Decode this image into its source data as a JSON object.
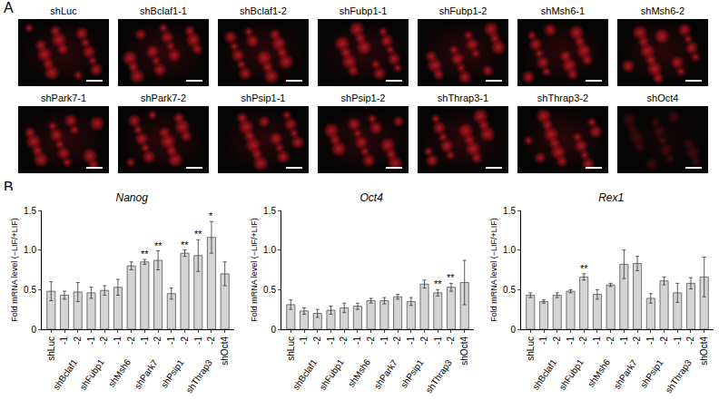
{
  "panel_labels": [
    "A",
    "B"
  ],
  "images": {
    "labels": [
      "shLuc",
      "shBclaf1-1",
      "shBclaf1-2",
      "shFubp1-1",
      "shFubp1-2",
      "shMsh6-1",
      "shMsh6-2",
      "shPark7-1",
      "shPark7-2",
      "shPsip1-1",
      "shPsip1-2",
      "shThrap3-1",
      "shThrap3-2",
      "shOct4"
    ]
  },
  "chart_data": [
    {
      "type": "bar",
      "title": "Nanog",
      "y_label": "Fold mRNA level (−LIF/+LIF)",
      "categories": [
        "shLuc",
        "-1",
        "-2",
        "-1",
        "-2",
        "-1",
        "-2",
        "-1",
        "-2",
        "-1",
        "-2",
        "-1",
        "-2",
        "shOct4"
      ],
      "groups": [
        null,
        "shBclaf1",
        "shBclaf1",
        "shFubp1",
        "shFubp1",
        "shMsh6",
        "shMsh6",
        "shPark7",
        "shPark7",
        "shPsip1",
        "shPsip1",
        "shThrap3",
        "shThrap3",
        null
      ],
      "values": [
        0.48,
        0.43,
        0.47,
        0.46,
        0.49,
        0.53,
        0.8,
        0.85,
        0.87,
        0.45,
        0.96,
        0.93,
        1.16,
        0.7
      ],
      "error": [
        0.12,
        0.05,
        0.12,
        0.07,
        0.06,
        0.1,
        0.05,
        0.03,
        0.12,
        0.07,
        0.04,
        0.2,
        0.2,
        0.15
      ],
      "significance": [
        null,
        null,
        null,
        null,
        null,
        null,
        null,
        "**",
        "**",
        null,
        "**",
        "**",
        "*",
        null
      ],
      "color": "#d4d4d4",
      "grid": false,
      "ylim": [
        0,
        1.5
      ],
      "yticks": [
        0,
        0.5,
        {
          "value": 1,
          "label": "1.0"
        },
        1.5
      ]
    },
    {
      "type": "bar",
      "title": "Oct4",
      "y_label": "Fold mRNA level (−LIF/+LIF)",
      "categories": [
        "shLuc",
        "-1",
        "-2",
        "-1",
        "-2",
        "-1",
        "-2",
        "-1",
        "-2",
        "-1",
        "-2",
        "-1",
        "-2",
        "shOct4"
      ],
      "groups": [
        null,
        "shBclaf1",
        "shBclaf1",
        "shFubp1",
        "shFubp1",
        "shMsh6",
        "shMsh6",
        "shPark7",
        "shPark7",
        "shPsip1",
        "shPsip1",
        "shThrap3",
        "shThrap3",
        null
      ],
      "values": [
        0.31,
        0.23,
        0.2,
        0.24,
        0.27,
        0.29,
        0.36,
        0.36,
        0.41,
        0.35,
        0.57,
        0.46,
        0.53,
        0.59
      ],
      "error": [
        0.06,
        0.04,
        0.05,
        0.05,
        0.06,
        0.04,
        0.03,
        0.04,
        0.03,
        0.05,
        0.05,
        0.04,
        0.05,
        0.28
      ],
      "significance": [
        null,
        null,
        null,
        null,
        null,
        null,
        null,
        null,
        null,
        null,
        null,
        "**",
        "**",
        null
      ],
      "color": "#d4d4d4",
      "grid": false,
      "ylim": [
        0,
        1.5
      ],
      "yticks": [
        0,
        0.5,
        {
          "value": 1,
          "label": "1.0"
        },
        1.5
      ]
    },
    {
      "type": "bar",
      "title": "Rex1",
      "y_label": "Fold mRNA level (−LIF/+LIF)",
      "categories": [
        "shLuc",
        "-1",
        "-2",
        "-1",
        "-2",
        "-1",
        "-2",
        "-1",
        "-2",
        "-1",
        "-2",
        "-1",
        "-2",
        "shOct4"
      ],
      "groups": [
        null,
        "shBclaf1",
        "shBclaf1",
        "shFubp1",
        "shFubp1",
        "shMsh6",
        "shMsh6",
        "shPark7",
        "shPark7",
        "shPsip1",
        "shPsip1",
        "shThrap3",
        "shThrap3",
        null
      ],
      "values": [
        0.43,
        0.35,
        0.43,
        0.48,
        0.66,
        0.44,
        0.56,
        0.82,
        0.83,
        0.39,
        0.61,
        0.46,
        0.58,
        0.66
      ],
      "error": [
        0.03,
        0.02,
        0.03,
        0.02,
        0.04,
        0.06,
        0.02,
        0.18,
        0.09,
        0.06,
        0.05,
        0.12,
        0.07,
        0.25
      ],
      "significance": [
        null,
        null,
        null,
        null,
        "**",
        null,
        null,
        null,
        null,
        null,
        null,
        null,
        null,
        null
      ],
      "color": "#d4d4d4",
      "grid": false,
      "ylim": [
        0,
        1.5
      ],
      "yticks": [
        0,
        0.5,
        {
          "value": 1,
          "label": "1.0"
        },
        1.5
      ]
    }
  ]
}
